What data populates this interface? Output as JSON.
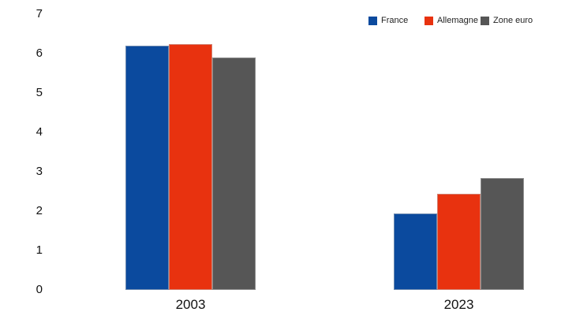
{
  "chart_data": {
    "type": "bar",
    "categories": [
      "2003",
      "2023"
    ],
    "series": [
      {
        "name": "France",
        "color": "#0b4a9e",
        "values": [
          6.2,
          1.95
        ]
      },
      {
        "name": "Allemagne",
        "color": "#e8320f",
        "values": [
          6.25,
          2.45
        ]
      },
      {
        "name": "Zone euro",
        "color": "#565656",
        "values": [
          5.9,
          2.85
        ]
      }
    ],
    "title": "",
    "xlabel": "",
    "ylabel": "",
    "ylim": [
      0,
      7
    ],
    "yticks": [
      0,
      1,
      2,
      3,
      4,
      5,
      6,
      7
    ],
    "grid": false,
    "legend_position": "top-right"
  }
}
